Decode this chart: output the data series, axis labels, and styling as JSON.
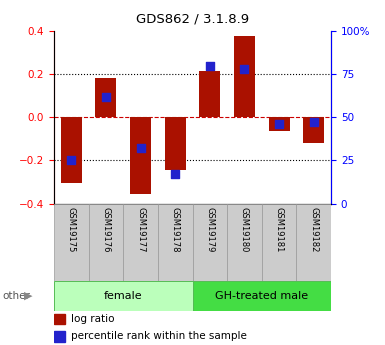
{
  "title": "GDS862 / 3.1.8.9",
  "samples": [
    "GSM19175",
    "GSM19176",
    "GSM19177",
    "GSM19178",
    "GSM19179",
    "GSM19180",
    "GSM19181",
    "GSM19182"
  ],
  "log_ratio": [
    -0.305,
    0.18,
    -0.355,
    -0.245,
    0.215,
    0.375,
    -0.065,
    -0.12
  ],
  "percentile_rank": [
    25,
    62,
    32,
    17,
    80,
    78,
    46,
    47
  ],
  "groups": [
    {
      "label": "female",
      "start": 0,
      "end": 4,
      "color": "#bbffbb"
    },
    {
      "label": "GH-treated male",
      "start": 4,
      "end": 8,
      "color": "#44dd44"
    }
  ],
  "ylim": [
    -0.4,
    0.4
  ],
  "left_yticks": [
    -0.4,
    -0.2,
    0.0,
    0.2,
    0.4
  ],
  "right_yticks": [
    0,
    25,
    50,
    75,
    100
  ],
  "right_yticklabels": [
    "0",
    "25",
    "50",
    "75",
    "100%"
  ],
  "bar_color": "#aa1100",
  "dot_color": "#2222cc",
  "hline_color": "#cc0000",
  "bg_color": "#ffffff",
  "bar_width": 0.6,
  "dot_size": 30,
  "other_label": "other"
}
